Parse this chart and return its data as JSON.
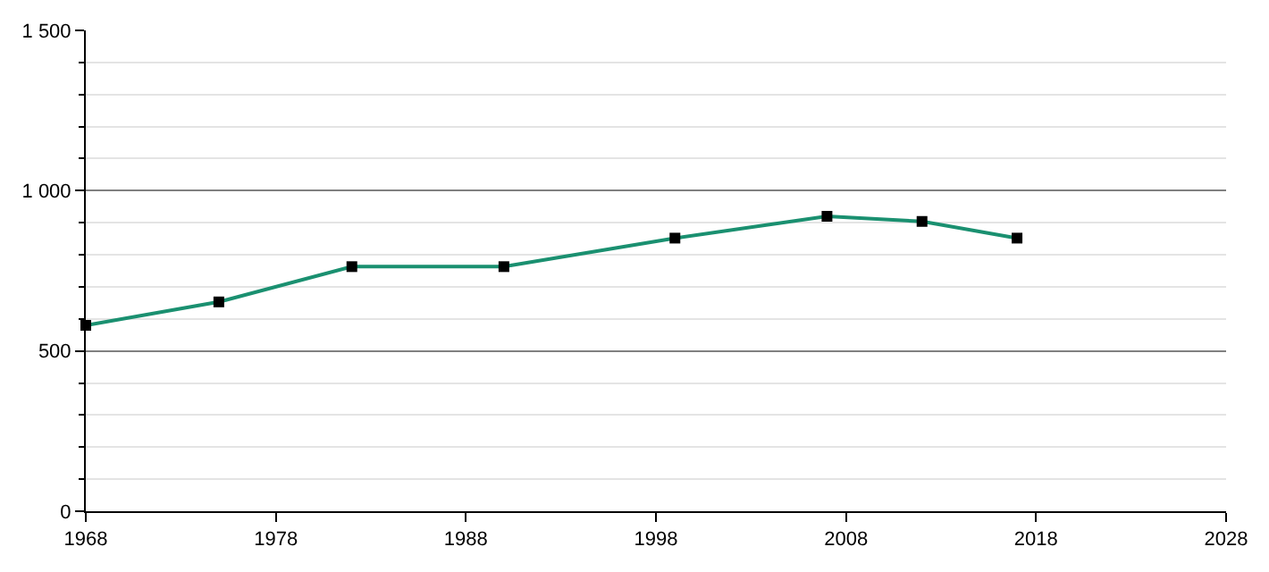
{
  "chart_data": {
    "type": "line",
    "x": [
      1968,
      1975,
      1982,
      1990,
      1999,
      2007,
      2012,
      2017
    ],
    "series": [
      {
        "color": "#1a9070",
        "values": [
          580,
          653,
          763,
          763,
          852,
          920,
          904,
          852
        ]
      }
    ],
    "xlim": [
      1968,
      2028
    ],
    "xticks": [
      1968,
      1978,
      1988,
      1998,
      2008,
      2018,
      2028
    ],
    "ylim": [
      0,
      1500
    ],
    "yticks": [
      0,
      500,
      {
        "value": 1000,
        "label": "1 000"
      },
      {
        "value": 1500,
        "label": "1 500"
      }
    ],
    "grid": "y",
    "marker": "square",
    "line_style": "solid",
    "legend": false
  }
}
